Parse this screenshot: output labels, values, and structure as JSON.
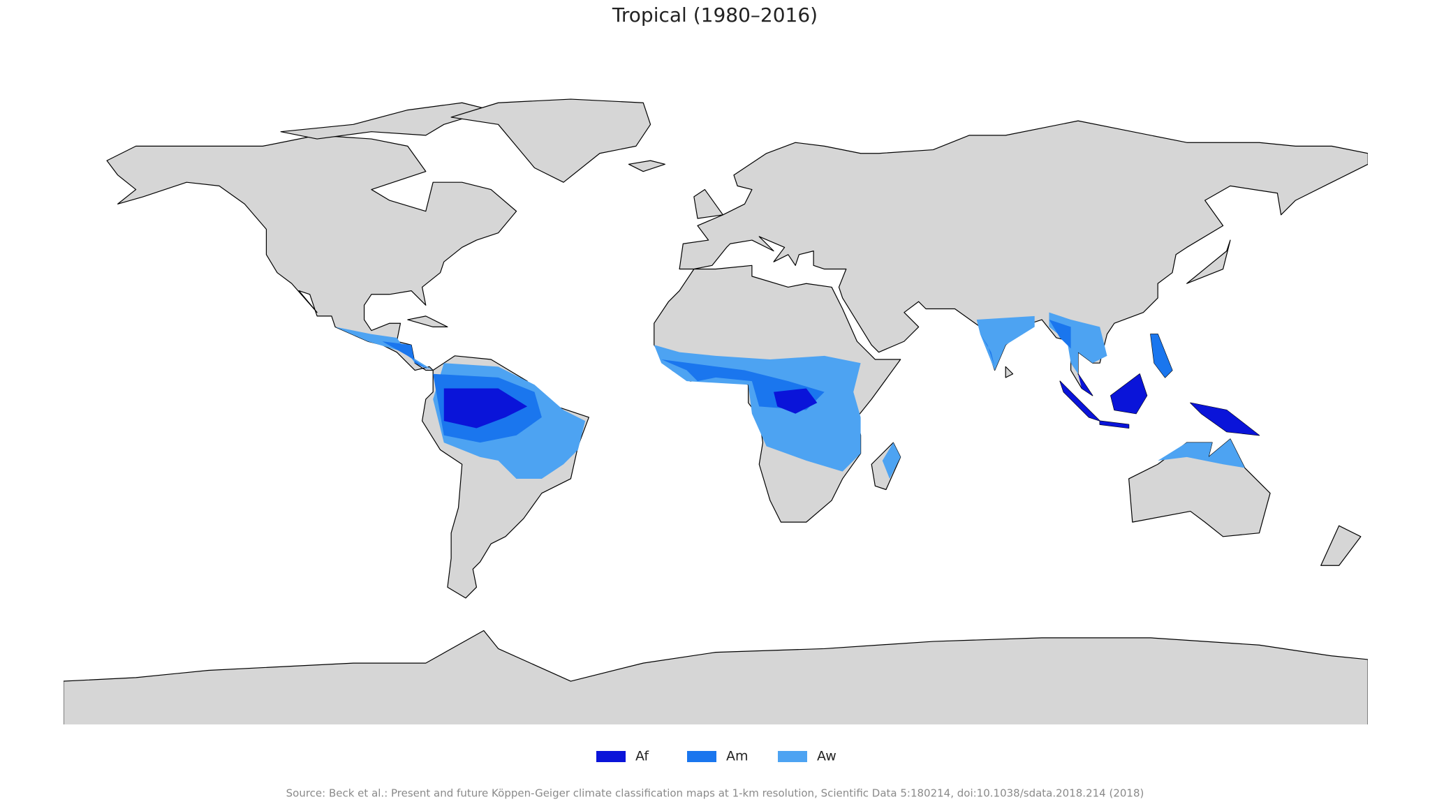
{
  "title": "Tropical (1980–2016)",
  "legend": [
    {
      "label": "Af",
      "color": "#0a14d9"
    },
    {
      "label": "Am",
      "color": "#1a76ee"
    },
    {
      "label": "Aw",
      "color": "#4da3f2"
    }
  ],
  "source": "Source: Beck et al.: Present and future Köppen-Geiger climate classification maps at 1-km resolution, Scientific Data 5:180214, doi:10.1038/sdata.2018.214 (2018)"
}
